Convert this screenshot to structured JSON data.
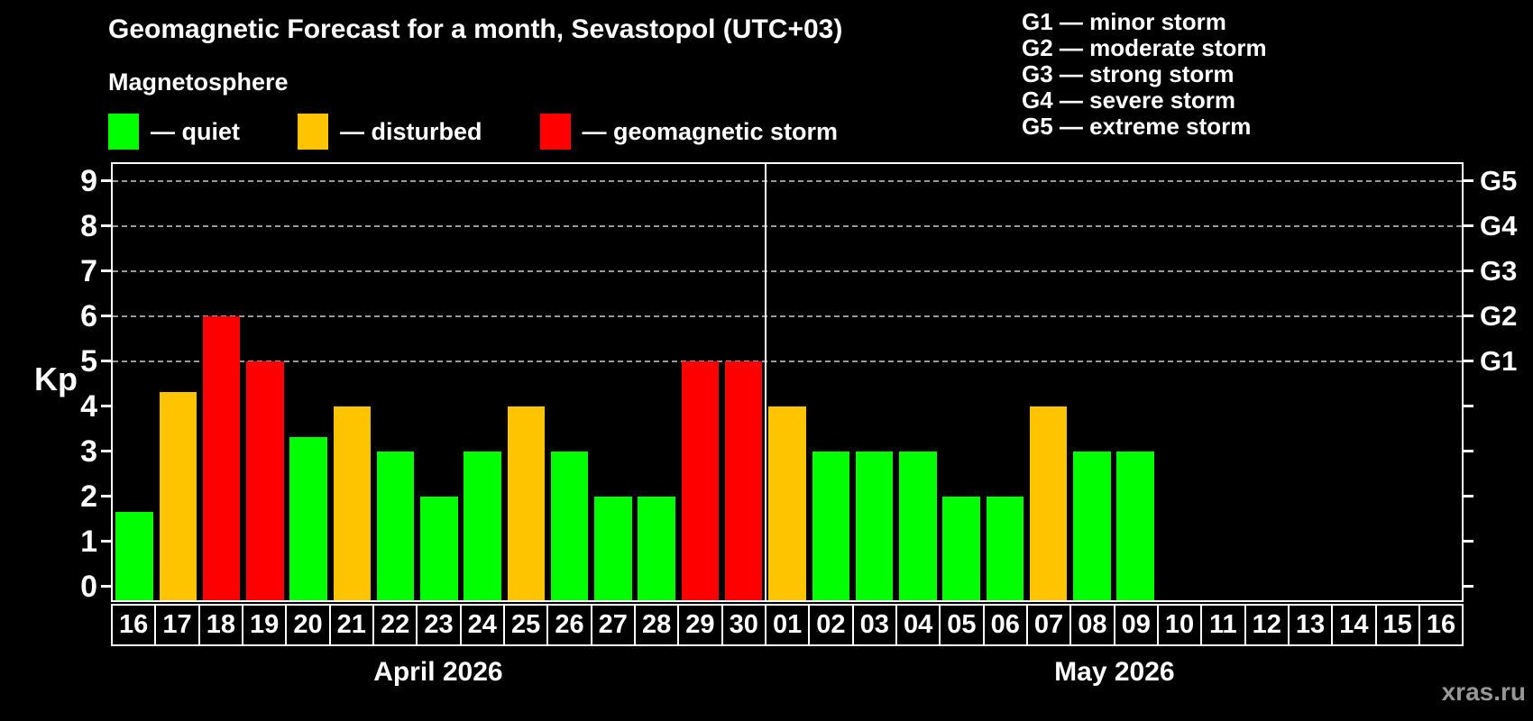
{
  "header": {
    "title": "Geomagnetic Forecast for a month, Sevastopol (UTC+03)",
    "subtitle": "Magnetosphere"
  },
  "legend_items": [
    {
      "name": "quiet",
      "swatch_color": "#00ff00",
      "label": "— quiet"
    },
    {
      "name": "disturbed",
      "swatch_color": "#ffc400",
      "label": "— disturbed"
    },
    {
      "name": "storm",
      "swatch_color": "#ff0000",
      "label": "— geomagnetic storm"
    }
  ],
  "storm_levels_legend": [
    "G1 — minor storm",
    "G2 — moderate storm",
    "G3 — strong storm",
    "G4 — severe storm",
    "G5 — extreme storm"
  ],
  "watermark": "xras.ru",
  "chart_data": {
    "type": "bar",
    "title": "Geomagnetic Forecast for a month, Sevastopol (UTC+03)",
    "ylabel": "Kp",
    "ylim": [
      0,
      9.4
    ],
    "yticks": [
      0,
      1,
      2,
      3,
      4,
      5,
      6,
      7,
      8,
      9
    ],
    "gridlines_at": [
      5,
      6,
      7,
      8,
      9
    ],
    "grid": "dashed",
    "legend_position": "top",
    "right_axis": [
      {
        "kp": 5,
        "label": "G1"
      },
      {
        "kp": 6,
        "label": "G2"
      },
      {
        "kp": 7,
        "label": "G3"
      },
      {
        "kp": 8,
        "label": "G4"
      },
      {
        "kp": 9,
        "label": "G5"
      }
    ],
    "color_map": {
      "quiet": "#00ff00",
      "disturbed": "#ffc400",
      "storm": "#ff0000"
    },
    "months": [
      {
        "label": "April 2026",
        "days": [
          {
            "day": "16",
            "kp": 1.67,
            "kind": "quiet"
          },
          {
            "day": "17",
            "kp": 4.33,
            "kind": "disturbed"
          },
          {
            "day": "18",
            "kp": 6,
            "kind": "storm"
          },
          {
            "day": "19",
            "kp": 5,
            "kind": "storm"
          },
          {
            "day": "20",
            "kp": 3.33,
            "kind": "quiet"
          },
          {
            "day": "21",
            "kp": 4,
            "kind": "disturbed"
          },
          {
            "day": "22",
            "kp": 3,
            "kind": "quiet"
          },
          {
            "day": "23",
            "kp": 2,
            "kind": "quiet"
          },
          {
            "day": "24",
            "kp": 3,
            "kind": "quiet"
          },
          {
            "day": "25",
            "kp": 4,
            "kind": "disturbed"
          },
          {
            "day": "26",
            "kp": 3,
            "kind": "quiet"
          },
          {
            "day": "27",
            "kp": 2,
            "kind": "quiet"
          },
          {
            "day": "28",
            "kp": 2,
            "kind": "quiet"
          },
          {
            "day": "29",
            "kp": 5,
            "kind": "storm"
          },
          {
            "day": "30",
            "kp": 5,
            "kind": "storm"
          }
        ]
      },
      {
        "label": "May 2026",
        "days": [
          {
            "day": "01",
            "kp": 4,
            "kind": "disturbed"
          },
          {
            "day": "02",
            "kp": 3,
            "kind": "quiet"
          },
          {
            "day": "03",
            "kp": 3,
            "kind": "quiet"
          },
          {
            "day": "04",
            "kp": 3,
            "kind": "quiet"
          },
          {
            "day": "05",
            "kp": 2,
            "kind": "quiet"
          },
          {
            "day": "06",
            "kp": 2,
            "kind": "quiet"
          },
          {
            "day": "07",
            "kp": 4,
            "kind": "disturbed"
          },
          {
            "day": "08",
            "kp": 3,
            "kind": "quiet"
          },
          {
            "day": "09",
            "kp": 3,
            "kind": "quiet"
          },
          {
            "day": "10",
            "kp": null,
            "kind": null
          },
          {
            "day": "11",
            "kp": null,
            "kind": null
          },
          {
            "day": "12",
            "kp": null,
            "kind": null
          },
          {
            "day": "13",
            "kp": null,
            "kind": null
          },
          {
            "day": "14",
            "kp": null,
            "kind": null
          },
          {
            "day": "15",
            "kp": null,
            "kind": null
          },
          {
            "day": "16",
            "kp": null,
            "kind": null
          }
        ]
      }
    ]
  }
}
